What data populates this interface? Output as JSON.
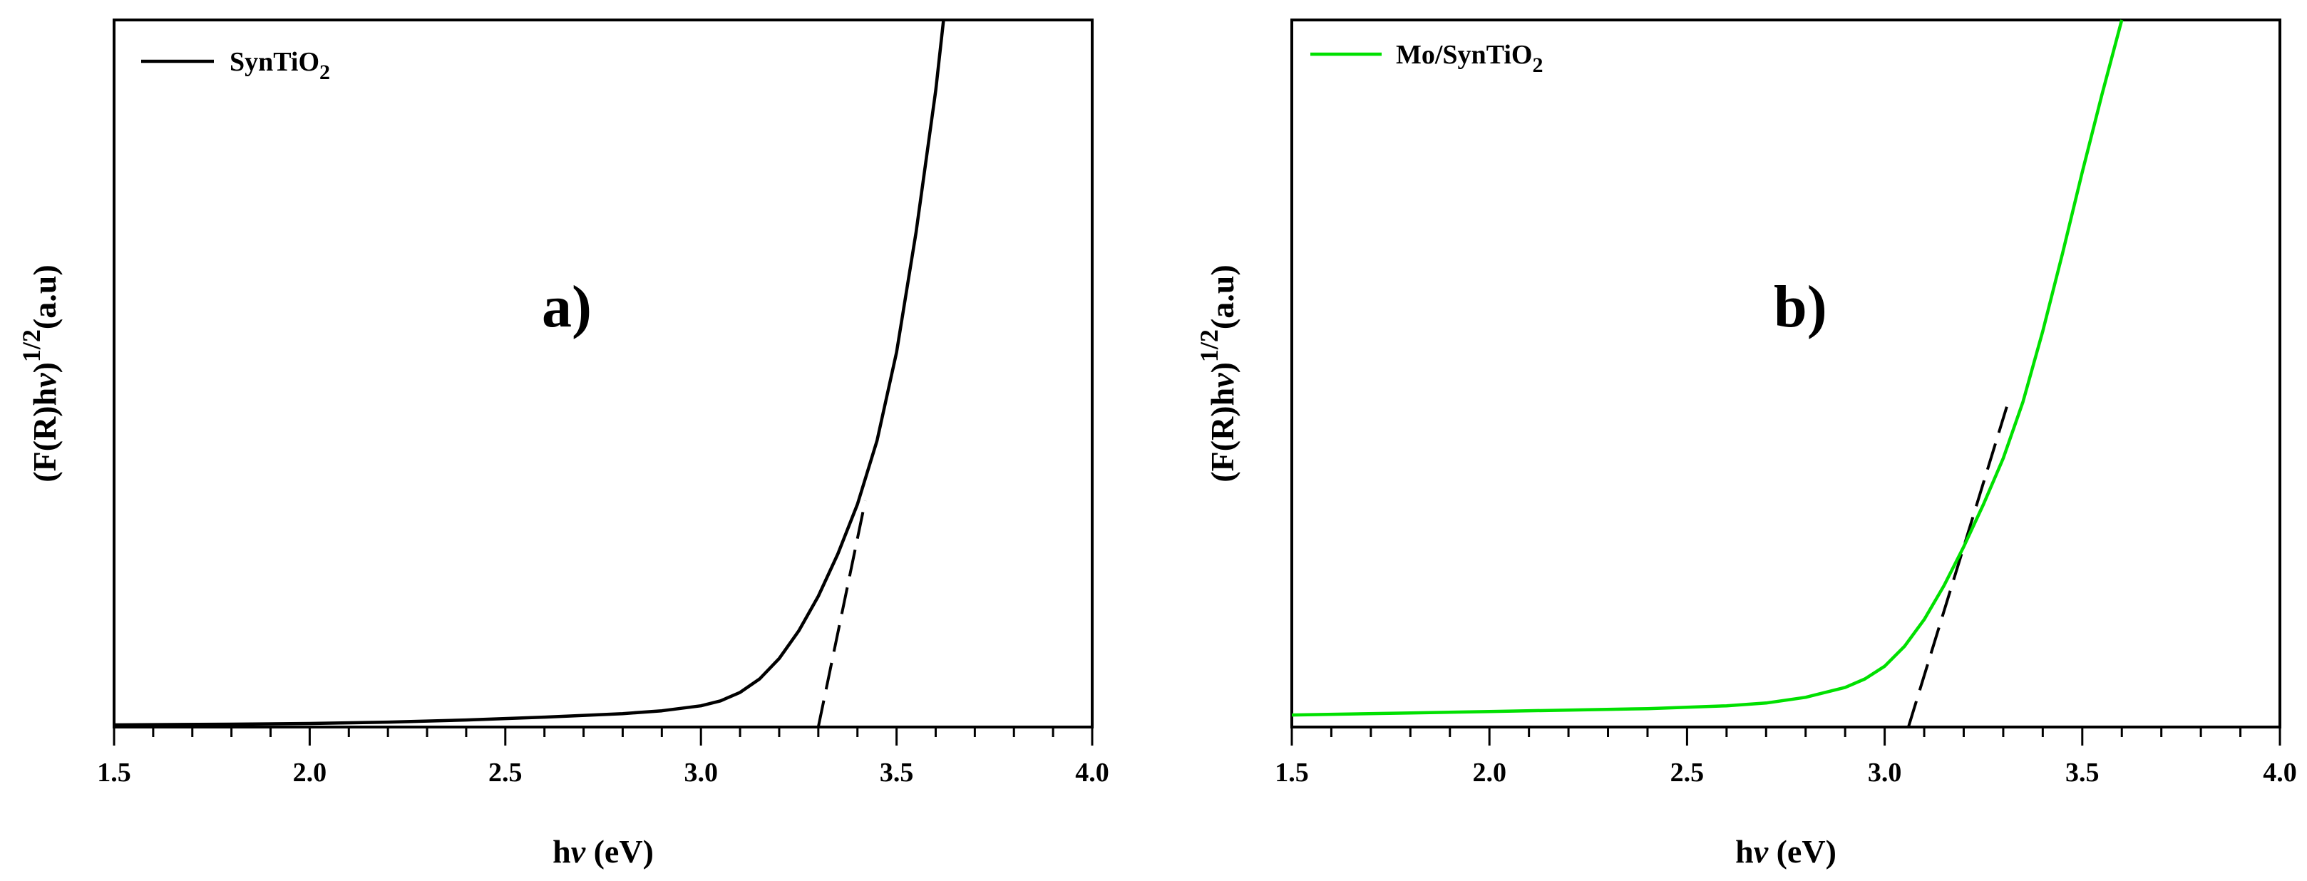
{
  "chart_data": [
    {
      "panel": "a)",
      "type": "line",
      "legend_placement": "top-left",
      "xlabel": "hν (eV)",
      "ylabel": "(F(R)hν)^1/2(a.u)",
      "xlim": [
        1.5,
        4.0
      ],
      "ylim": [
        0,
        100
      ],
      "grid": false,
      "x_ticks": [
        "1.5",
        "2.0",
        "2.5",
        "3.0",
        "3.5",
        "4.0"
      ],
      "series": [
        {
          "name": "SynTiO2",
          "legend_label": "SynTiO",
          "legend_subscript": "2",
          "color": "#000000",
          "x": [
            1.5,
            1.8,
            2.0,
            2.2,
            2.4,
            2.6,
            2.8,
            2.9,
            3.0,
            3.05,
            3.1,
            3.15,
            3.2,
            3.25,
            3.3,
            3.35,
            3.4,
            3.45,
            3.5,
            3.55,
            3.6,
            3.62
          ],
          "y": [
            0.3,
            0.4,
            0.5,
            0.7,
            1.0,
            1.4,
            1.9,
            2.3,
            3.0,
            3.7,
            4.9,
            6.8,
            9.7,
            13.6,
            18.5,
            24.5,
            31.5,
            40.5,
            53.0,
            70.0,
            90.0,
            100.0
          ]
        }
      ],
      "tangent": {
        "x": [
          3.3,
          3.42
        ],
        "y": [
          0.0,
          32.0
        ]
      }
    },
    {
      "panel": "b)",
      "type": "line",
      "legend_placement": "top-left",
      "xlabel": "hν (eV)",
      "ylabel": "(F(R)hν)^1/2(a.u)",
      "xlim": [
        1.5,
        4.0
      ],
      "ylim": [
        0,
        100
      ],
      "grid": false,
      "x_ticks": [
        "1.5",
        "2.0",
        "2.5",
        "3.0",
        "3.5",
        "4.0"
      ],
      "series": [
        {
          "name": "Mo/SynTiO2",
          "legend_label": "Mo/SynTiO",
          "legend_subscript": "2",
          "color": "#00e000",
          "x": [
            1.5,
            1.8,
            2.0,
            2.2,
            2.4,
            2.6,
            2.7,
            2.8,
            2.9,
            2.95,
            3.0,
            3.05,
            3.1,
            3.15,
            3.2,
            3.25,
            3.3,
            3.35,
            3.4,
            3.45,
            3.5,
            3.55,
            3.6
          ],
          "y": [
            1.7,
            2.0,
            2.2,
            2.4,
            2.6,
            3.0,
            3.4,
            4.2,
            5.6,
            6.8,
            8.6,
            11.4,
            15.2,
            20.0,
            25.5,
            31.5,
            38.0,
            46.0,
            56.0,
            67.0,
            78.5,
            89.5,
            100.0
          ]
        }
      ],
      "tangent": {
        "x": [
          3.06,
          3.31
        ],
        "y": [
          0.0,
          45.5
        ]
      }
    }
  ]
}
